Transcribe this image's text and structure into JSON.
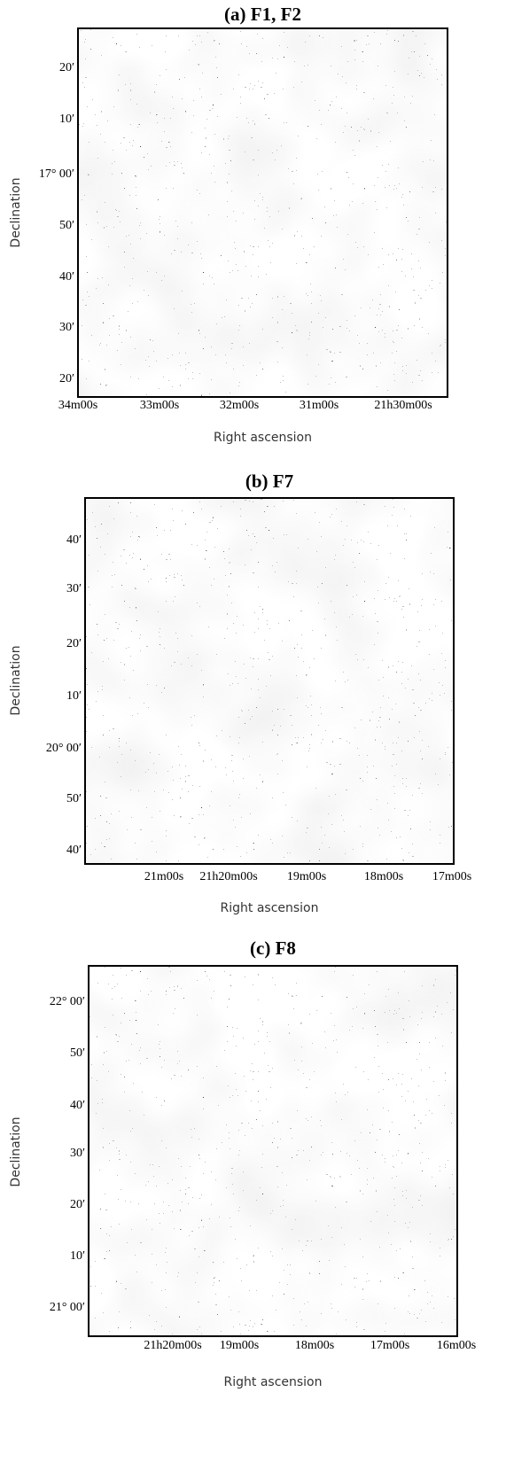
{
  "panels": [
    {
      "title": "(a) F1, F2",
      "y_label": "Declination",
      "x_label": "Right ascension",
      "y_ticks": [
        "20′",
        "10′",
        "17° 00′",
        "50′",
        "40′",
        "30′",
        "20′"
      ],
      "x_ticks": [
        "34m00s",
        "33m00s",
        "32m00s",
        "31m00s",
        "21h30m00s"
      ]
    },
    {
      "title": "(b) F7",
      "y_label": "Declination",
      "x_label": "Right ascension",
      "y_ticks": [
        "40′",
        "30′",
        "20′",
        "10′",
        "20° 00′",
        "50′",
        "40′"
      ],
      "x_ticks": [
        "21m00s",
        "21h20m00s",
        "19m00s",
        "18m00s",
        "17m00s"
      ]
    },
    {
      "title": "(c) F8",
      "y_label": "Declination",
      "x_label": "Right ascension",
      "y_ticks": [
        "22° 00′",
        "50′",
        "40′",
        "30′",
        "20′",
        "10′",
        "21° 00′"
      ],
      "x_ticks": [
        "21h20m00s",
        "19m00s",
        "18m00s",
        "17m00s",
        "16m00s"
      ]
    }
  ]
}
